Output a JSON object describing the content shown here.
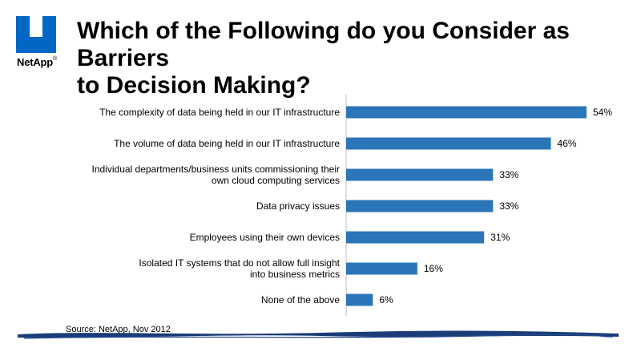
{
  "logo": {
    "text": "NetApp",
    "tm": "®"
  },
  "title_line1": "Which of the Following do you Consider as Barriers",
  "title_line2": "to Decision Making?",
  "source": "Source: NetApp, Nov 2012",
  "colors": {
    "bar": "#2b75b9",
    "logo": "#0067c5",
    "stroke": "#1a3c78"
  },
  "chart_data": {
    "type": "bar",
    "orientation": "horizontal",
    "title": "",
    "xlabel": "",
    "ylabel": "",
    "xlim": [
      0,
      54
    ],
    "grid": false,
    "categories": [
      [
        "The complexity of data being held in our IT infrastructure"
      ],
      [
        "The volume of data being held in our IT infrastructure"
      ],
      [
        "Individual departments/business units commissioning their",
        "own cloud computing services"
      ],
      [
        "Data privacy issues"
      ],
      [
        "Employees using their own devices"
      ],
      [
        "Isolated IT systems that do not allow full insight",
        "into business metrics"
      ],
      [
        "None of the above"
      ]
    ],
    "values": [
      54,
      46,
      33,
      33,
      31,
      16,
      6
    ],
    "value_labels": [
      "54%",
      "46%",
      "33%",
      "33%",
      "31%",
      "16%",
      "6%"
    ]
  }
}
